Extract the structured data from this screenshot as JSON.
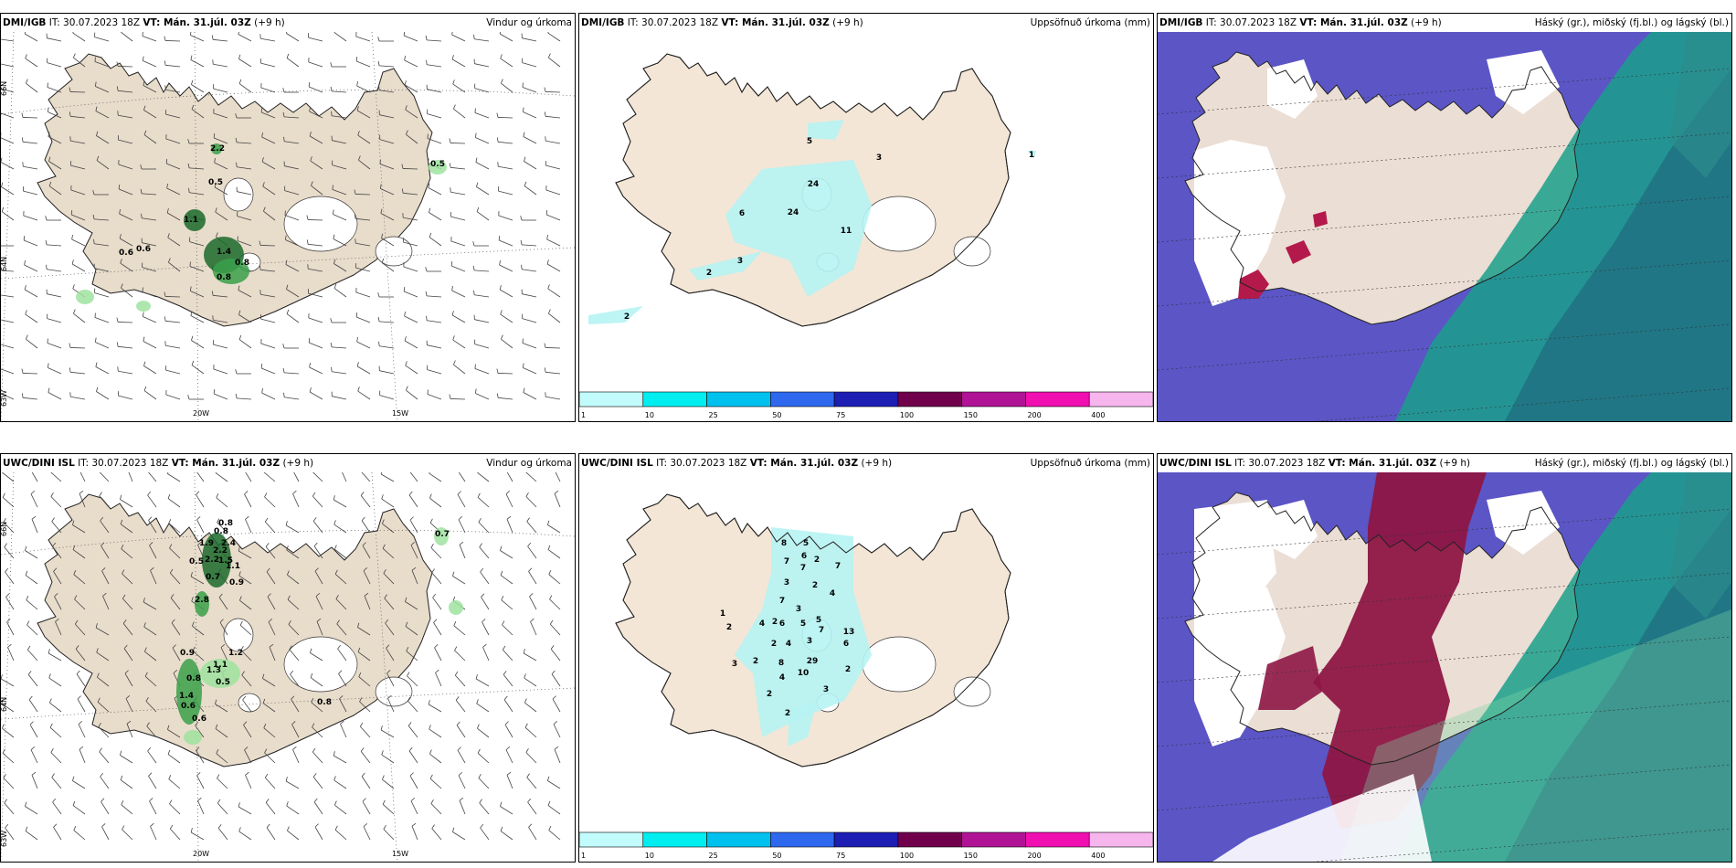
{
  "colors": {
    "land": "#f3e6d6",
    "land_wind": "#e8dccb",
    "sea_cloud": "#5b55c6",
    "precip_dark": "#1b6a2c",
    "precip_mid": "#39a04a",
    "precip_light": "#9fe3a0",
    "accum": "#b6f3f3",
    "mid_cloud": "#1aa089",
    "low_cloud": "#b31a4b"
  },
  "panels": [
    {
      "row": 0,
      "col": 0,
      "kind": "wind",
      "model": "DMI/IGB",
      "it": "IT: 30.07.2023 18Z",
      "vt": "VT: Mán. 31.júl. 03Z",
      "lead": "(+9 h)",
      "title": "Vindur og úrkoma",
      "lat_labels": [
        "66N",
        "64N",
        "63W"
      ],
      "lon_labels": [
        "20W",
        "15W"
      ],
      "values": [
        {
          "t": "2.2",
          "x": 237,
          "y": 130
        },
        {
          "t": "0.5",
          "x": 235,
          "y": 167
        },
        {
          "t": "1.1",
          "x": 208,
          "y": 208
        },
        {
          "t": "0.6",
          "x": 156,
          "y": 240
        },
        {
          "t": "0.6",
          "x": 137,
          "y": 244
        },
        {
          "t": "1.4",
          "x": 244,
          "y": 243
        },
        {
          "t": "0.8",
          "x": 264,
          "y": 255
        },
        {
          "t": "0.8",
          "x": 244,
          "y": 271
        },
        {
          "t": "0.5",
          "x": 478,
          "y": 147
        }
      ]
    },
    {
      "row": 0,
      "col": 1,
      "kind": "accum",
      "model": "DMI/IGB",
      "it": "IT: 30.07.2023 18Z",
      "vt": "VT: Mán. 31.júl. 03Z",
      "lead": "(+9 h)",
      "title": "Uppsöfnuð úrkoma (mm)",
      "values": [
        {
          "t": "5",
          "x": 252,
          "y": 122
        },
        {
          "t": "3",
          "x": 328,
          "y": 140
        },
        {
          "t": "24",
          "x": 256,
          "y": 169
        },
        {
          "t": "6",
          "x": 178,
          "y": 201
        },
        {
          "t": "24",
          "x": 234,
          "y": 200
        },
        {
          "t": "11",
          "x": 292,
          "y": 220
        },
        {
          "t": "3",
          "x": 176,
          "y": 253
        },
        {
          "t": "2",
          "x": 142,
          "y": 266
        },
        {
          "t": "2",
          "x": 52,
          "y": 314
        },
        {
          "t": "1",
          "x": 495,
          "y": 137
        }
      ],
      "colorbar": {
        "colors": [
          "#c2fbfb",
          "#00eef0",
          "#00c0ee",
          "#2e68ee",
          "#1c1eb4",
          "#70004c",
          "#b01395",
          "#f00fb0",
          "#f7b5ee"
        ],
        "labels": [
          "1",
          "10",
          "25",
          "50",
          "75",
          "100",
          "150",
          "200",
          "400"
        ]
      }
    },
    {
      "row": 0,
      "col": 2,
      "kind": "cloud",
      "model": "DMI/IGB",
      "it": "IT: 30.07.2023 18Z",
      "vt": "VT: Mán. 31.júl. 03Z",
      "lead": "(+9 h)",
      "title": "Háský (gr.), miðský (fj.bl.) og lágský (bl.)"
    },
    {
      "row": 1,
      "col": 0,
      "kind": "wind",
      "model": "UWC/DINI ISL",
      "it": "IT: 30.07.2023 18Z",
      "vt": "VT: Mán. 31.júl. 03Z",
      "lead": "(+9 h)",
      "title": "Vindur og úrkoma",
      "lat_labels": [
        "66N",
        "64N",
        "63W"
      ],
      "lon_labels": [
        "20W",
        "15W"
      ],
      "values": [
        {
          "t": "0.8",
          "x": 246,
          "y": 58
        },
        {
          "t": "0.8",
          "x": 241,
          "y": 67
        },
        {
          "t": "1.9",
          "x": 225,
          "y": 80
        },
        {
          "t": "2.4",
          "x": 249,
          "y": 80
        },
        {
          "t": "2.2",
          "x": 240,
          "y": 88
        },
        {
          "t": "0.5",
          "x": 214,
          "y": 100
        },
        {
          "t": "2.2",
          "x": 231,
          "y": 98
        },
        {
          "t": "1.5",
          "x": 246,
          "y": 99
        },
        {
          "t": "1.1",
          "x": 254,
          "y": 105
        },
        {
          "t": "0.7",
          "x": 232,
          "y": 117
        },
        {
          "t": "0.9",
          "x": 258,
          "y": 123
        },
        {
          "t": "2.8",
          "x": 220,
          "y": 142
        },
        {
          "t": "0.9",
          "x": 204,
          "y": 200
        },
        {
          "t": "1.2",
          "x": 257,
          "y": 200
        },
        {
          "t": "1.1",
          "x": 240,
          "y": 213
        },
        {
          "t": "1.3",
          "x": 233,
          "y": 219
        },
        {
          "t": "0.8",
          "x": 211,
          "y": 228
        },
        {
          "t": "0.5",
          "x": 243,
          "y": 232
        },
        {
          "t": "1.4",
          "x": 203,
          "y": 247
        },
        {
          "t": "0.6",
          "x": 205,
          "y": 258
        },
        {
          "t": "0.6",
          "x": 217,
          "y": 272
        },
        {
          "t": "0.8",
          "x": 354,
          "y": 254
        },
        {
          "t": "0.7",
          "x": 483,
          "y": 70
        }
      ]
    },
    {
      "row": 1,
      "col": 1,
      "kind": "accum",
      "model": "UWC/DINI ISL",
      "it": "IT: 30.07.2023 18Z",
      "vt": "VT: Mán. 31.júl. 03Z",
      "lead": "(+9 h)",
      "title": "Uppsöfnuð úrkoma (mm)",
      "values": [
        {
          "t": "5",
          "x": 248,
          "y": 80
        },
        {
          "t": "8",
          "x": 224,
          "y": 80
        },
        {
          "t": "6",
          "x": 246,
          "y": 94
        },
        {
          "t": "7",
          "x": 227,
          "y": 100
        },
        {
          "t": "7",
          "x": 245,
          "y": 107
        },
        {
          "t": "2",
          "x": 260,
          "y": 98
        },
        {
          "t": "7",
          "x": 283,
          "y": 105
        },
        {
          "t": "3",
          "x": 227,
          "y": 123
        },
        {
          "t": "2",
          "x": 258,
          "y": 126
        },
        {
          "t": "4",
          "x": 277,
          "y": 135
        },
        {
          "t": "7",
          "x": 222,
          "y": 143
        },
        {
          "t": "3",
          "x": 240,
          "y": 152
        },
        {
          "t": "1",
          "x": 157,
          "y": 157
        },
        {
          "t": "2",
          "x": 164,
          "y": 172
        },
        {
          "t": "4",
          "x": 200,
          "y": 168
        },
        {
          "t": "2",
          "x": 214,
          "y": 166
        },
        {
          "t": "6",
          "x": 222,
          "y": 168
        },
        {
          "t": "5",
          "x": 245,
          "y": 168
        },
        {
          "t": "5",
          "x": 262,
          "y": 164
        },
        {
          "t": "7",
          "x": 265,
          "y": 175
        },
        {
          "t": "3",
          "x": 252,
          "y": 187
        },
        {
          "t": "13",
          "x": 295,
          "y": 177
        },
        {
          "t": "6",
          "x": 292,
          "y": 190
        },
        {
          "t": "2",
          "x": 213,
          "y": 190
        },
        {
          "t": "4",
          "x": 229,
          "y": 190
        },
        {
          "t": "2",
          "x": 193,
          "y": 209
        },
        {
          "t": "8",
          "x": 221,
          "y": 211
        },
        {
          "t": "29",
          "x": 255,
          "y": 209
        },
        {
          "t": "10",
          "x": 245,
          "y": 222
        },
        {
          "t": "4",
          "x": 222,
          "y": 227
        },
        {
          "t": "3",
          "x": 170,
          "y": 212
        },
        {
          "t": "2",
          "x": 294,
          "y": 218
        },
        {
          "t": "3",
          "x": 270,
          "y": 240
        },
        {
          "t": "2",
          "x": 208,
          "y": 245
        },
        {
          "t": "2",
          "x": 228,
          "y": 266
        }
      ],
      "colorbar": {
        "colors": [
          "#c2fbfb",
          "#00eef0",
          "#00c0ee",
          "#2e68ee",
          "#1c1eb4",
          "#70004c",
          "#b01395",
          "#f00fb0",
          "#f7b5ee"
        ],
        "labels": [
          "1",
          "10",
          "25",
          "50",
          "75",
          "100",
          "150",
          "200",
          "400"
        ]
      }
    },
    {
      "row": 1,
      "col": 2,
      "kind": "cloud2",
      "model": "UWC/DINI ISL",
      "it": "IT: 30.07.2023 18Z",
      "vt": "VT: Mán. 31.júl. 03Z",
      "lead": "(+9 h)",
      "title": "Háský (gr.), miðský (fj.bl.) og lágský (bl.)"
    }
  ]
}
